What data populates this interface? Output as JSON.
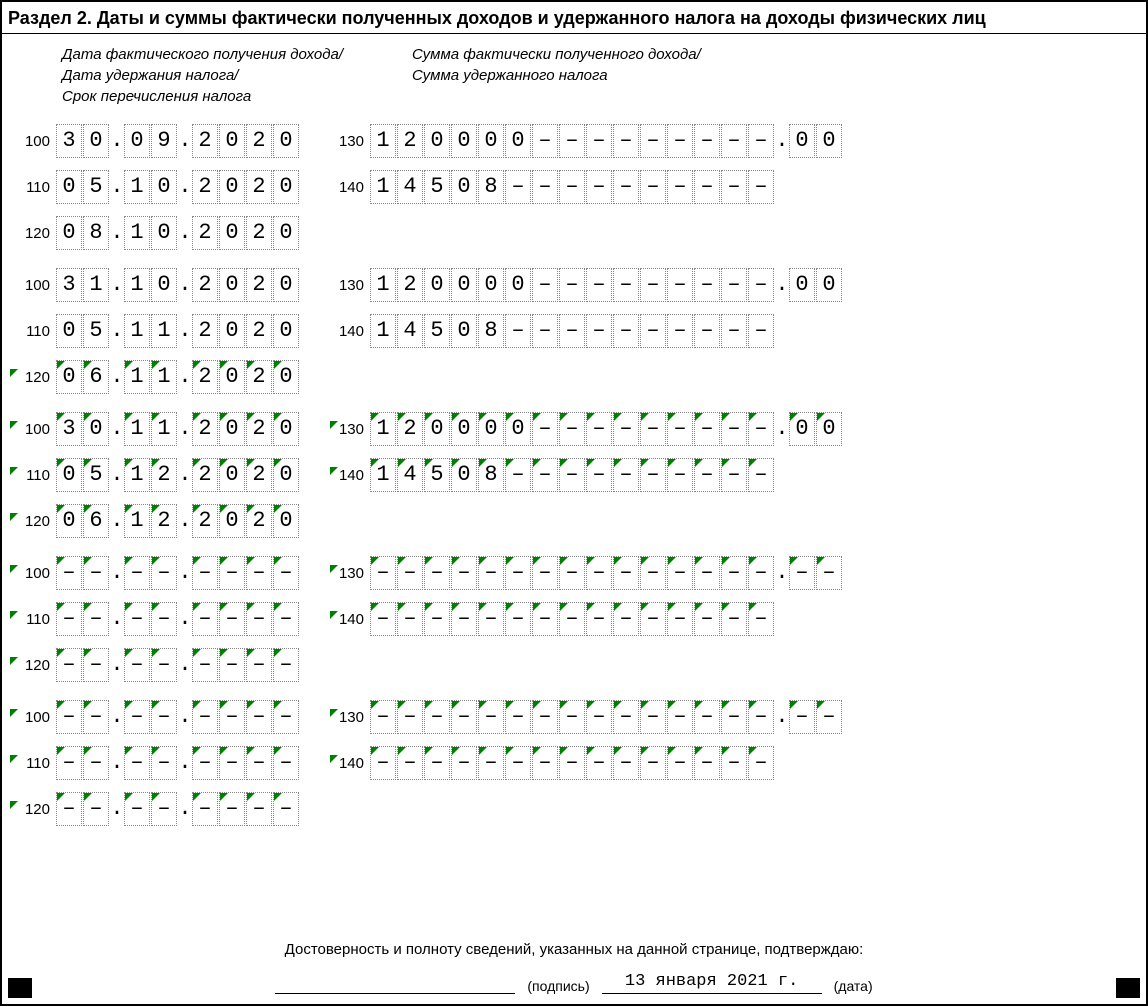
{
  "title": "Раздел 2. Даты и суммы фактически полученных доходов и удержанного налога на доходы физических лиц",
  "header_left_1": "Дата фактического получения дохода/",
  "header_left_2": "Дата удержания налога/",
  "header_left_3": "Срок перечисления налога",
  "header_right_1": "Сумма фактически полученного дохода/",
  "header_right_2": "Сумма удержанного налога",
  "footer_confirm": "Достоверность и полноту сведений, указанных на данной странице, подтверждаю:",
  "footer_sig_label": "(подпись)",
  "footer_date_value": "13 января 2021 г.",
  "footer_date_label": "(дата)",
  "dash": "–",
  "dot": ".",
  "labels": {
    "l100": "100",
    "l110": "110",
    "l120": "120",
    "l130": "130",
    "l140": "140"
  },
  "blocks": [
    {
      "mark": false,
      "d100": [
        "3",
        "0",
        "0",
        "9",
        "2",
        "0",
        "2",
        "0"
      ],
      "d110": [
        "0",
        "5",
        "1",
        "0",
        "2",
        "0",
        "2",
        "0"
      ],
      "d120": [
        "0",
        "8",
        "1",
        "0",
        "2",
        "0",
        "2",
        "0"
      ],
      "a130": [
        "1",
        "2",
        "0",
        "0",
        "0",
        "0",
        "–",
        "–",
        "–",
        "–",
        "–",
        "–",
        "–",
        "–",
        "–"
      ],
      "a130k": [
        "0",
        "0"
      ],
      "a140": [
        "1",
        "4",
        "5",
        "0",
        "8",
        "–",
        "–",
        "–",
        "–",
        "–",
        "–",
        "–",
        "–",
        "–",
        "–"
      ]
    },
    {
      "mark": false,
      "mark120": true,
      "d100": [
        "3",
        "1",
        "1",
        "0",
        "2",
        "0",
        "2",
        "0"
      ],
      "d110": [
        "0",
        "5",
        "1",
        "1",
        "2",
        "0",
        "2",
        "0"
      ],
      "d120": [
        "0",
        "6",
        "1",
        "1",
        "2",
        "0",
        "2",
        "0"
      ],
      "a130": [
        "1",
        "2",
        "0",
        "0",
        "0",
        "0",
        "–",
        "–",
        "–",
        "–",
        "–",
        "–",
        "–",
        "–",
        "–"
      ],
      "a130k": [
        "0",
        "0"
      ],
      "a140": [
        "1",
        "4",
        "5",
        "0",
        "8",
        "–",
        "–",
        "–",
        "–",
        "–",
        "–",
        "–",
        "–",
        "–",
        "–"
      ]
    },
    {
      "mark": true,
      "d100": [
        "3",
        "0",
        "1",
        "1",
        "2",
        "0",
        "2",
        "0"
      ],
      "d110": [
        "0",
        "5",
        "1",
        "2",
        "2",
        "0",
        "2",
        "0"
      ],
      "d120": [
        "0",
        "6",
        "1",
        "2",
        "2",
        "0",
        "2",
        "0"
      ],
      "a130": [
        "1",
        "2",
        "0",
        "0",
        "0",
        "0",
        "–",
        "–",
        "–",
        "–",
        "–",
        "–",
        "–",
        "–",
        "–"
      ],
      "a130k": [
        "0",
        "0"
      ],
      "a140": [
        "1",
        "4",
        "5",
        "0",
        "8",
        "–",
        "–",
        "–",
        "–",
        "–",
        "–",
        "–",
        "–",
        "–",
        "–"
      ]
    },
    {
      "mark": true,
      "d100": [
        "–",
        "–",
        "–",
        "–",
        "–",
        "–",
        "–",
        "–"
      ],
      "d110": [
        "–",
        "–",
        "–",
        "–",
        "–",
        "–",
        "–",
        "–"
      ],
      "d120": [
        "–",
        "–",
        "–",
        "–",
        "–",
        "–",
        "–",
        "–"
      ],
      "a130": [
        "–",
        "–",
        "–",
        "–",
        "–",
        "–",
        "–",
        "–",
        "–",
        "–",
        "–",
        "–",
        "–",
        "–",
        "–"
      ],
      "a130k": [
        "–",
        "–"
      ],
      "a140": [
        "–",
        "–",
        "–",
        "–",
        "–",
        "–",
        "–",
        "–",
        "–",
        "–",
        "–",
        "–",
        "–",
        "–",
        "–"
      ]
    },
    {
      "mark": true,
      "d100": [
        "–",
        "–",
        "–",
        "–",
        "–",
        "–",
        "–",
        "–"
      ],
      "d110": [
        "–",
        "–",
        "–",
        "–",
        "–",
        "–",
        "–",
        "–"
      ],
      "d120": [
        "–",
        "–",
        "–",
        "–",
        "–",
        "–",
        "–",
        "–"
      ],
      "a130": [
        "–",
        "–",
        "–",
        "–",
        "–",
        "–",
        "–",
        "–",
        "–",
        "–",
        "–",
        "–",
        "–",
        "–",
        "–"
      ],
      "a130k": [
        "–",
        "–"
      ],
      "a140": [
        "–",
        "–",
        "–",
        "–",
        "–",
        "–",
        "–",
        "–",
        "–",
        "–",
        "–",
        "–",
        "–",
        "–",
        "–"
      ]
    }
  ]
}
